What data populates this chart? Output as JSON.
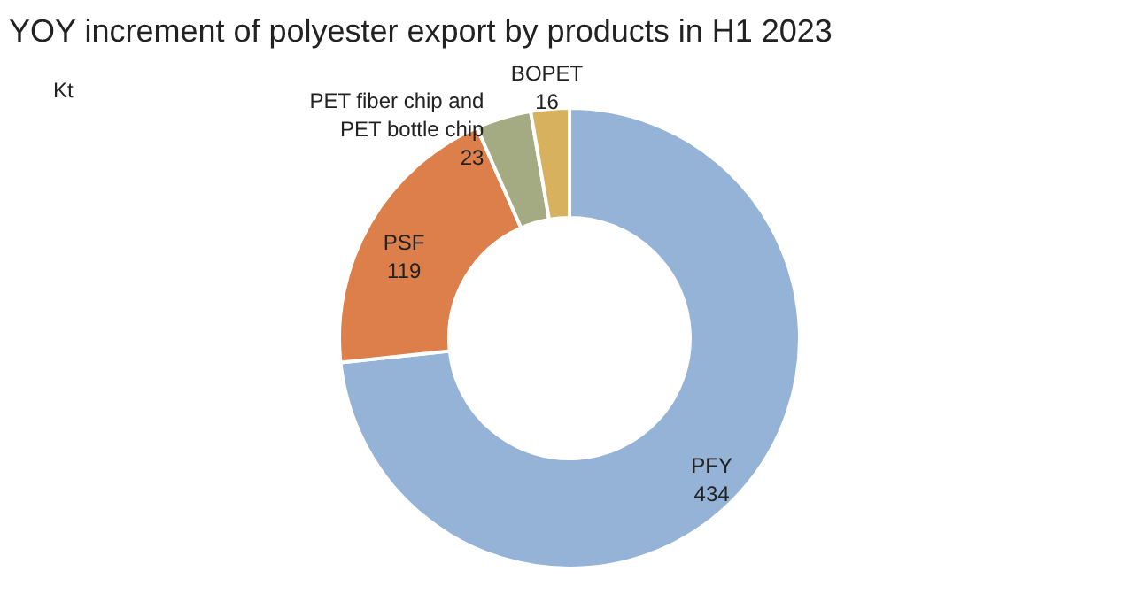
{
  "chart_data": {
    "type": "donut",
    "title": "YOY increment of polyester export by products in H1 2023",
    "categories": [
      "PFY",
      "PSF",
      "PET fiber chip and PET bottle chip",
      "BOPET"
    ],
    "values": [
      434,
      119,
      23,
      16
    ],
    "colors": [
      "#95b3d7",
      "#dd7f4a",
      "#a4ab82",
      "#d8b15f"
    ],
    "annotations": [
      "Kt"
    ],
    "data_labels": true
  }
}
